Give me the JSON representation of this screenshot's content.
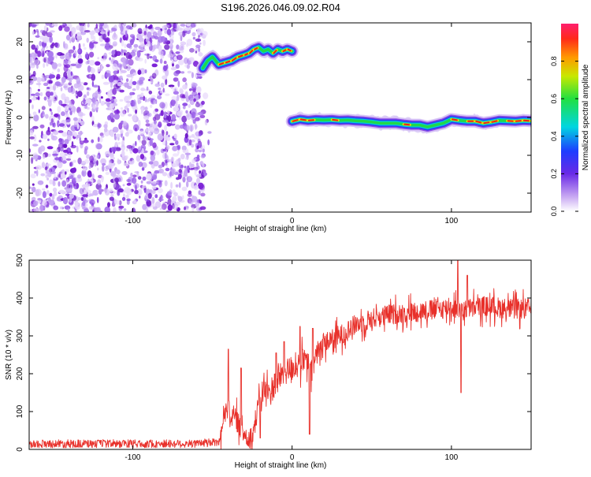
{
  "figure_title": "S196.2026.046.09.02.R04",
  "chart_data": [
    {
      "type": "heatmap",
      "panel": "spectrogram",
      "xlabel": "Height of straight line (km)",
      "ylabel": "Frequency (Hz)",
      "xlim": [
        -165,
        150
      ],
      "ylim": [
        -25,
        25
      ],
      "xticks": [
        -100,
        0,
        100
      ],
      "yticks": [
        -20,
        -10,
        0,
        10,
        20
      ],
      "noise_region": {
        "x": [
          -165,
          -55
        ],
        "y": [
          -25,
          25
        ],
        "amplitude_range": [
          0.0,
          0.25
        ]
      },
      "ridges": [
        {
          "name": "upper ridge",
          "points": [
            [
              -56,
              13
            ],
            [
              -53,
              15
            ],
            [
              -50,
              16
            ],
            [
              -46,
              14
            ],
            [
              -42,
              14.5
            ],
            [
              -38,
              15
            ],
            [
              -34,
              16
            ],
            [
              -30,
              16.5
            ],
            [
              -27,
              17
            ],
            [
              -24,
              18
            ],
            [
              -21,
              18.5
            ],
            [
              -18,
              17.5
            ],
            [
              -15,
              18
            ],
            [
              -12,
              17
            ],
            [
              -9,
              18
            ],
            [
              -6,
              17.5
            ],
            [
              -3,
              18
            ],
            [
              0,
              17.5
            ]
          ]
        },
        {
          "name": "lower ridge",
          "points": [
            [
              0,
              -1
            ],
            [
              5,
              -0.5
            ],
            [
              10,
              -0.8
            ],
            [
              15,
              -0.6
            ],
            [
              20,
              -0.7
            ],
            [
              25,
              -0.6
            ],
            [
              30,
              -0.8
            ],
            [
              35,
              -0.7
            ],
            [
              40,
              -0.9
            ],
            [
              45,
              -1
            ],
            [
              50,
              -1.2
            ],
            [
              55,
              -1.5
            ],
            [
              60,
              -1.5
            ],
            [
              65,
              -1.5
            ],
            [
              70,
              -1.8
            ],
            [
              75,
              -2
            ],
            [
              80,
              -2
            ],
            [
              85,
              -2.5
            ],
            [
              90,
              -2
            ],
            [
              95,
              -1.5
            ],
            [
              100,
              -0.5
            ],
            [
              105,
              -0.8
            ],
            [
              110,
              -1
            ],
            [
              115,
              -1
            ],
            [
              120,
              -1.5
            ],
            [
              125,
              -1.2
            ],
            [
              130,
              -0.8
            ],
            [
              135,
              -0.9
            ],
            [
              140,
              -1
            ],
            [
              145,
              -0.8
            ],
            [
              150,
              -0.9
            ]
          ]
        }
      ],
      "colorbar": {
        "label": "Normalized spectral amplitude",
        "ticks": [
          0.0,
          0.2,
          0.4,
          0.6,
          0.8
        ],
        "tick_labels": [
          "0.0",
          "0.2",
          "0.4",
          "0.6",
          "0.8"
        ],
        "range": [
          0,
          1
        ]
      }
    },
    {
      "type": "line",
      "panel": "snr",
      "xlabel": "Height of straight line (km)",
      "ylabel": "SNR (10 * v/v)",
      "xlim": [
        -165,
        150
      ],
      "ylim": [
        0,
        500
      ],
      "xticks": [
        -100,
        0,
        100
      ],
      "yticks": [
        0,
        100,
        200,
        300,
        400,
        500
      ],
      "series": [
        {
          "name": "SNR",
          "color": "#e8302a",
          "envelope": [
            [
              -165,
              15
            ],
            [
              -60,
              15
            ],
            [
              -45,
              20
            ],
            [
              -42,
              120
            ],
            [
              -38,
              90
            ],
            [
              -35,
              80
            ],
            [
              -30,
              40
            ],
            [
              -25,
              30
            ],
            [
              -22,
              100
            ],
            [
              -18,
              160
            ],
            [
              -14,
              150
            ],
            [
              -10,
              180
            ],
            [
              -6,
              200
            ],
            [
              -2,
              210
            ],
            [
              2,
              220
            ],
            [
              6,
              230
            ],
            [
              9,
              235
            ],
            [
              12,
              200
            ],
            [
              15,
              250
            ],
            [
              20,
              280
            ],
            [
              25,
              290
            ],
            [
              30,
              300
            ],
            [
              40,
              330
            ],
            [
              50,
              345
            ],
            [
              60,
              355
            ],
            [
              70,
              360
            ],
            [
              80,
              365
            ],
            [
              90,
              370
            ],
            [
              100,
              375
            ],
            [
              110,
              372
            ],
            [
              120,
              378
            ],
            [
              130,
              375
            ],
            [
              140,
              370
            ],
            [
              150,
              372
            ]
          ],
          "spikes": [
            [
              -40,
              265
            ],
            [
              -32,
              215
            ],
            [
              -20,
              30
            ],
            [
              -10,
              255
            ],
            [
              -5,
              285
            ],
            [
              5,
              325
            ],
            [
              11,
              40
            ],
            [
              13,
              320
            ],
            [
              104,
              500
            ],
            [
              106,
              150
            ],
            [
              110,
              460
            ]
          ]
        }
      ]
    }
  ],
  "colors": {
    "signal_line": "#e8302a",
    "noise_purple": "#7a1fd6",
    "axis": "#000000"
  }
}
